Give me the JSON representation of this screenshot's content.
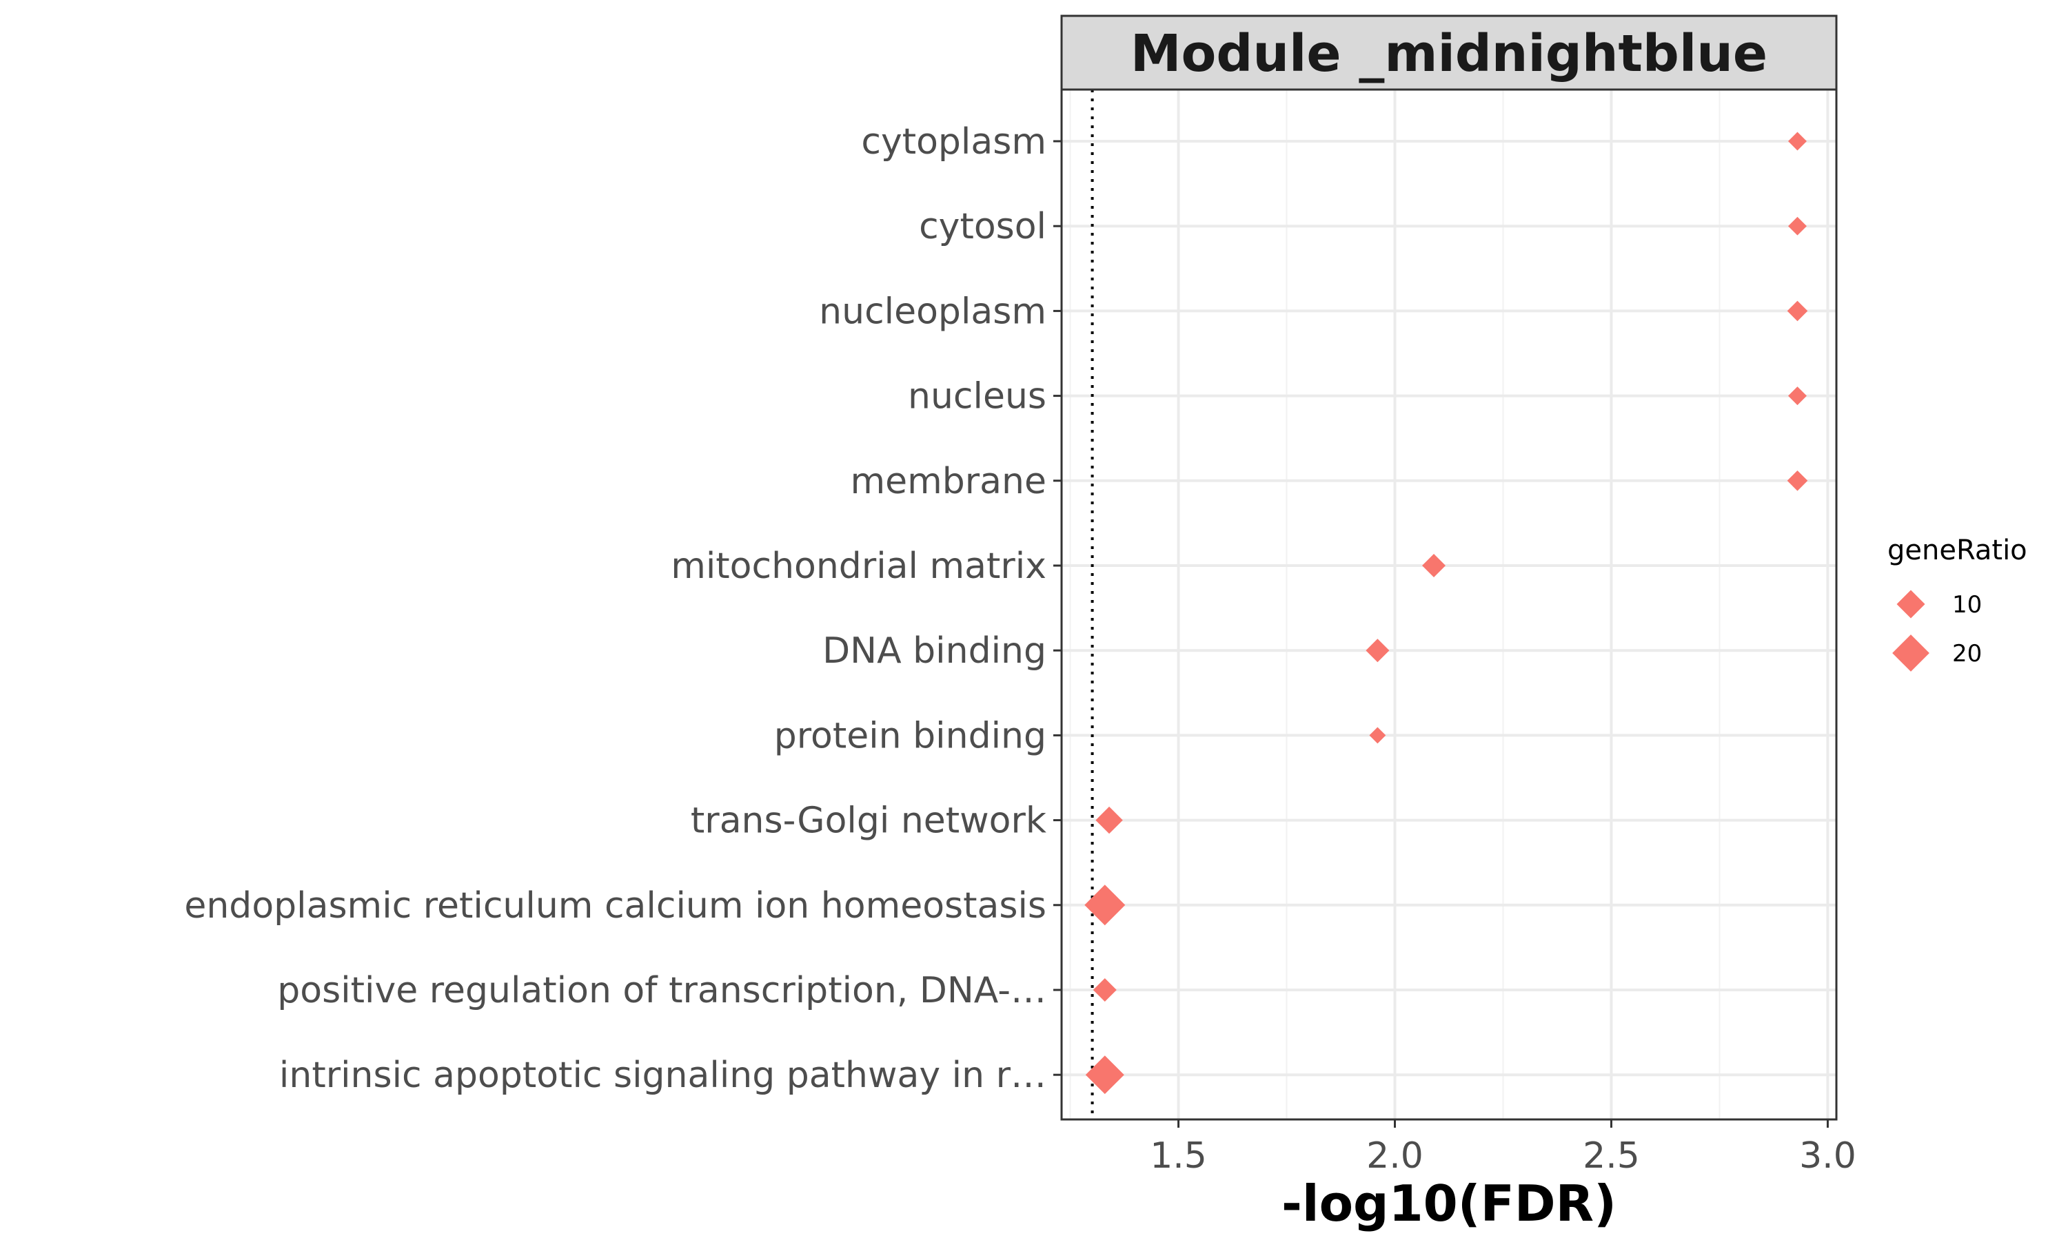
{
  "chart_data": {
    "type": "scatter",
    "facet_title": "Module _midnightblue",
    "xlabel": "-log10(FDR)",
    "ylabel": "",
    "xlim": [
      1.23,
      3.02
    ],
    "x_ticks": [
      1.5,
      2.0,
      2.5,
      3.0
    ],
    "x_tick_labels": [
      "1.5",
      "2.0",
      "2.5",
      "3.0"
    ],
    "threshold_line": 1.301,
    "grid": true,
    "marker": "diamond",
    "color": "#F8766D",
    "categories": [
      "cytoplasm",
      "cytosol",
      "nucleoplasm",
      "nucleus",
      "membrane",
      "mitochondrial matrix",
      "DNA binding",
      "protein binding",
      "trans-Golgi network",
      "endoplasmic reticulum calcium ion homeostasis",
      "positive regulation of transcription, DNA-…",
      "intrinsic apoptotic signaling pathway in r…"
    ],
    "points": [
      {
        "term": "cytoplasm",
        "x": 2.93,
        "geneRatio": 3
      },
      {
        "term": "cytosol",
        "x": 2.93,
        "geneRatio": 3
      },
      {
        "term": "nucleoplasm",
        "x": 2.93,
        "geneRatio": 4
      },
      {
        "term": "nucleus",
        "x": 2.93,
        "geneRatio": 3
      },
      {
        "term": "membrane",
        "x": 2.93,
        "geneRatio": 4
      },
      {
        "term": "mitochondrial matrix",
        "x": 2.09,
        "geneRatio": 6
      },
      {
        "term": "DNA binding",
        "x": 1.96,
        "geneRatio": 6
      },
      {
        "term": "protein binding",
        "x": 1.96,
        "geneRatio": 2
      },
      {
        "term": "trans-Golgi network",
        "x": 1.34,
        "geneRatio": 9
      },
      {
        "term": "endoplasmic reticulum calcium ion homeostasis",
        "x": 1.33,
        "geneRatio": 25
      },
      {
        "term": "positive regulation of transcription, DNA-…",
        "x": 1.33,
        "geneRatio": 6
      },
      {
        "term": "intrinsic apoptotic signaling pathway in r…",
        "x": 1.33,
        "geneRatio": 22
      }
    ],
    "legend": {
      "title": "geneRatio",
      "position": "right",
      "entries": [
        {
          "label": "10",
          "value": 10
        },
        {
          "label": "20",
          "value": 20
        }
      ]
    }
  }
}
